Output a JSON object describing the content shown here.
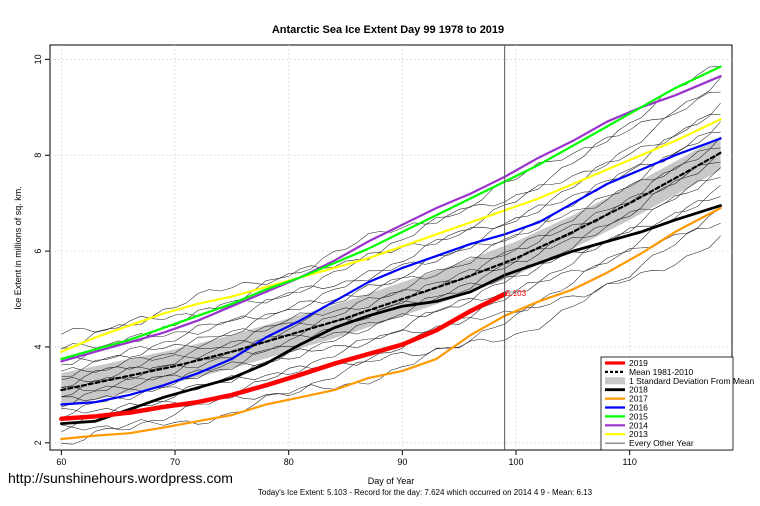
{
  "chart_data": {
    "type": "line",
    "title": "Antarctic Sea Ice Extent Day 99 1978 to 2019",
    "xlabel": "Day of Year",
    "ylabel": "Ice Extent in millions of sq. km.",
    "xlim": [
      59,
      119
    ],
    "ylim": [
      1.85,
      10.3
    ],
    "xticks": [
      60,
      70,
      80,
      90,
      100,
      110
    ],
    "yticks": [
      2,
      4,
      6,
      8,
      10
    ],
    "grid": true,
    "legend_position": "bottom-right",
    "current_day_marker": 99,
    "current_value_label": "5.103",
    "series": [
      {
        "name": "2019",
        "color": "#ff0000",
        "width": 4.5,
        "dash": "",
        "points": [
          [
            60,
            2.5
          ],
          [
            63,
            2.55
          ],
          [
            66,
            2.63
          ],
          [
            69,
            2.75
          ],
          [
            72,
            2.85
          ],
          [
            75,
            3.0
          ],
          [
            78,
            3.2
          ],
          [
            81,
            3.42
          ],
          [
            84,
            3.65
          ],
          [
            87,
            3.85
          ],
          [
            90,
            4.05
          ],
          [
            93,
            4.35
          ],
          [
            96,
            4.75
          ],
          [
            99,
            5.1
          ]
        ]
      },
      {
        "name": "Mean 1981-2010",
        "color": "#000000",
        "width": 2.2,
        "dash": "4,3",
        "points": [
          [
            60,
            3.1
          ],
          [
            65,
            3.35
          ],
          [
            70,
            3.6
          ],
          [
            75,
            3.9
          ],
          [
            80,
            4.25
          ],
          [
            85,
            4.6
          ],
          [
            90,
            5.0
          ],
          [
            95,
            5.4
          ],
          [
            100,
            5.85
          ],
          [
            105,
            6.4
          ],
          [
            110,
            7.0
          ],
          [
            115,
            7.65
          ],
          [
            118,
            8.05
          ]
        ]
      },
      {
        "name": "2018",
        "color": "#000000",
        "width": 2.8,
        "dash": "",
        "points": [
          [
            60,
            2.4
          ],
          [
            63,
            2.45
          ],
          [
            66,
            2.7
          ],
          [
            69,
            2.95
          ],
          [
            72,
            3.15
          ],
          [
            75,
            3.35
          ],
          [
            78,
            3.65
          ],
          [
            81,
            4.05
          ],
          [
            84,
            4.4
          ],
          [
            87,
            4.65
          ],
          [
            90,
            4.85
          ],
          [
            93,
            4.95
          ],
          [
            96,
            5.15
          ],
          [
            99,
            5.5
          ],
          [
            102,
            5.75
          ],
          [
            105,
            6.0
          ],
          [
            108,
            6.2
          ],
          [
            111,
            6.4
          ],
          [
            114,
            6.65
          ],
          [
            118,
            6.95
          ]
        ]
      },
      {
        "name": "2017",
        "color": "#ff9900",
        "width": 2.2,
        "dash": "",
        "points": [
          [
            60,
            2.08
          ],
          [
            63,
            2.15
          ],
          [
            66,
            2.2
          ],
          [
            69,
            2.32
          ],
          [
            72,
            2.45
          ],
          [
            75,
            2.58
          ],
          [
            78,
            2.8
          ],
          [
            81,
            2.95
          ],
          [
            84,
            3.1
          ],
          [
            87,
            3.35
          ],
          [
            90,
            3.5
          ],
          [
            93,
            3.75
          ],
          [
            96,
            4.25
          ],
          [
            99,
            4.65
          ],
          [
            102,
            4.95
          ],
          [
            105,
            5.2
          ],
          [
            108,
            5.55
          ],
          [
            111,
            5.95
          ],
          [
            114,
            6.4
          ],
          [
            118,
            6.9
          ]
        ]
      },
      {
        "name": "2016",
        "color": "#0000ff",
        "width": 2.2,
        "dash": "",
        "points": [
          [
            60,
            2.8
          ],
          [
            63,
            2.85
          ],
          [
            66,
            3.0
          ],
          [
            69,
            3.2
          ],
          [
            72,
            3.45
          ],
          [
            75,
            3.75
          ],
          [
            78,
            4.2
          ],
          [
            81,
            4.55
          ],
          [
            84,
            4.95
          ],
          [
            87,
            5.35
          ],
          [
            90,
            5.65
          ],
          [
            93,
            5.9
          ],
          [
            96,
            6.15
          ],
          [
            99,
            6.35
          ],
          [
            102,
            6.6
          ],
          [
            105,
            7.0
          ],
          [
            108,
            7.4
          ],
          [
            111,
            7.7
          ],
          [
            114,
            8.0
          ],
          [
            118,
            8.35
          ]
        ]
      },
      {
        "name": "2015",
        "color": "#00ff00",
        "width": 2.2,
        "dash": "",
        "points": [
          [
            60,
            3.75
          ],
          [
            63,
            3.95
          ],
          [
            66,
            4.15
          ],
          [
            69,
            4.4
          ],
          [
            72,
            4.65
          ],
          [
            75,
            4.9
          ],
          [
            78,
            5.2
          ],
          [
            81,
            5.45
          ],
          [
            84,
            5.75
          ],
          [
            87,
            6.05
          ],
          [
            90,
            6.4
          ],
          [
            93,
            6.75
          ],
          [
            96,
            7.1
          ],
          [
            99,
            7.45
          ],
          [
            102,
            7.8
          ],
          [
            105,
            8.2
          ],
          [
            108,
            8.6
          ],
          [
            111,
            9.0
          ],
          [
            114,
            9.4
          ],
          [
            118,
            9.85
          ]
        ]
      },
      {
        "name": "2014",
        "color": "#9933cc",
        "width": 2.2,
        "dash": "",
        "points": [
          [
            60,
            3.7
          ],
          [
            63,
            3.9
          ],
          [
            66,
            4.1
          ],
          [
            69,
            4.3
          ],
          [
            72,
            4.55
          ],
          [
            75,
            4.85
          ],
          [
            78,
            5.15
          ],
          [
            81,
            5.45
          ],
          [
            84,
            5.8
          ],
          [
            87,
            6.2
          ],
          [
            90,
            6.55
          ],
          [
            93,
            6.9
          ],
          [
            96,
            7.2
          ],
          [
            99,
            7.55
          ],
          [
            102,
            7.95
          ],
          [
            105,
            8.3
          ],
          [
            108,
            8.7
          ],
          [
            111,
            9.0
          ],
          [
            114,
            9.25
          ],
          [
            118,
            9.65
          ]
        ]
      },
      {
        "name": "2013",
        "color": "#ffff00",
        "width": 2.2,
        "dash": "",
        "points": [
          [
            60,
            3.9
          ],
          [
            63,
            4.2
          ],
          [
            66,
            4.45
          ],
          [
            69,
            4.7
          ],
          [
            72,
            4.9
          ],
          [
            75,
            5.05
          ],
          [
            78,
            5.25
          ],
          [
            81,
            5.45
          ],
          [
            84,
            5.65
          ],
          [
            87,
            5.85
          ],
          [
            90,
            6.1
          ],
          [
            93,
            6.35
          ],
          [
            96,
            6.6
          ],
          [
            99,
            6.85
          ],
          [
            102,
            7.1
          ],
          [
            105,
            7.4
          ],
          [
            108,
            7.7
          ],
          [
            111,
            8.0
          ],
          [
            114,
            8.3
          ],
          [
            118,
            8.75
          ]
        ]
      }
    ],
    "std_band_label": "1 Standard Deviation From Mean",
    "other_years_label": "Every Other Year",
    "legend": [
      "2019",
      "Mean 1981-2010",
      "1 Standard Deviation From Mean",
      "2018",
      "2017",
      "2016",
      "2015",
      "2014",
      "2013",
      "Every Other Year"
    ]
  },
  "footer_text": "Today's Ice Extent: 5.103  - Record for the day: 7.624 which occurred on 2014 4 9  - Mean: 6.13",
  "website": "http://sunshinehours.wordpress.com"
}
